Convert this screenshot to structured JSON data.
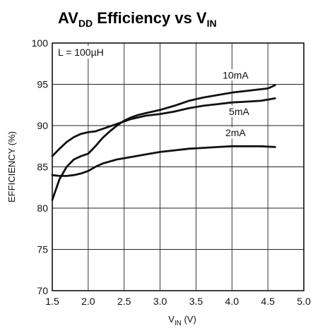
{
  "chart_data": {
    "type": "line",
    "title": {
      "parts": [
        {
          "text": "AV",
          "sub": false
        },
        {
          "text": "DD",
          "sub": true
        },
        {
          "text": " Efficiency vs V",
          "sub": false
        },
        {
          "text": "IN",
          "sub": true
        }
      ]
    },
    "xlabel": {
      "parts": [
        {
          "text": "V",
          "sub": false
        },
        {
          "text": "IN",
          "sub": true
        },
        {
          "text": " (V)",
          "sub": false
        }
      ]
    },
    "ylabel": "EFFICIENCY (%)",
    "annotation": "L = 100µH",
    "xlim": [
      1.5,
      5.0
    ],
    "ylim": [
      70,
      100
    ],
    "xticks": [
      "1.5",
      "2.0",
      "2.5",
      "3.0",
      "3.5",
      "4.0",
      "4.5",
      "5.0"
    ],
    "yticks": [
      "70",
      "75",
      "80",
      "85",
      "90",
      "95",
      "100"
    ],
    "grid": true,
    "series": [
      {
        "name": "10mA",
        "x": [
          1.5,
          1.6,
          1.7,
          1.8,
          1.9,
          2.0,
          2.1,
          2.2,
          2.3,
          2.4,
          2.5,
          2.6,
          2.7,
          2.8,
          2.9,
          3.0,
          3.2,
          3.4,
          3.6,
          3.8,
          4.0,
          4.2,
          4.4,
          4.5,
          4.6
        ],
        "y": [
          81.0,
          83.5,
          85.0,
          85.9,
          86.3,
          86.6,
          87.5,
          88.5,
          89.3,
          90.0,
          90.6,
          91.0,
          91.3,
          91.5,
          91.7,
          91.9,
          92.4,
          93.0,
          93.4,
          93.7,
          94.0,
          94.2,
          94.4,
          94.5,
          94.9
        ]
      },
      {
        "name": "5mA",
        "x": [
          1.5,
          1.6,
          1.7,
          1.8,
          1.9,
          2.0,
          2.1,
          2.2,
          2.4,
          2.6,
          2.8,
          3.0,
          3.2,
          3.4,
          3.6,
          3.8,
          4.0,
          4.2,
          4.4,
          4.6
        ],
        "y": [
          86.3,
          87.2,
          88.0,
          88.6,
          89.0,
          89.2,
          89.3,
          89.6,
          90.2,
          90.8,
          91.2,
          91.4,
          91.7,
          92.1,
          92.4,
          92.6,
          92.8,
          92.9,
          93.0,
          93.3
        ]
      },
      {
        "name": "2mA",
        "x": [
          1.5,
          1.6,
          1.7,
          1.8,
          1.9,
          2.0,
          2.1,
          2.2,
          2.4,
          2.6,
          2.8,
          3.0,
          3.2,
          3.4,
          3.6,
          3.8,
          4.0,
          4.2,
          4.4,
          4.6
        ],
        "y": [
          84.0,
          83.9,
          83.9,
          84.0,
          84.2,
          84.5,
          85.0,
          85.4,
          85.9,
          86.2,
          86.5,
          86.8,
          87.0,
          87.2,
          87.3,
          87.4,
          87.5,
          87.5,
          87.5,
          87.4
        ]
      }
    ]
  }
}
